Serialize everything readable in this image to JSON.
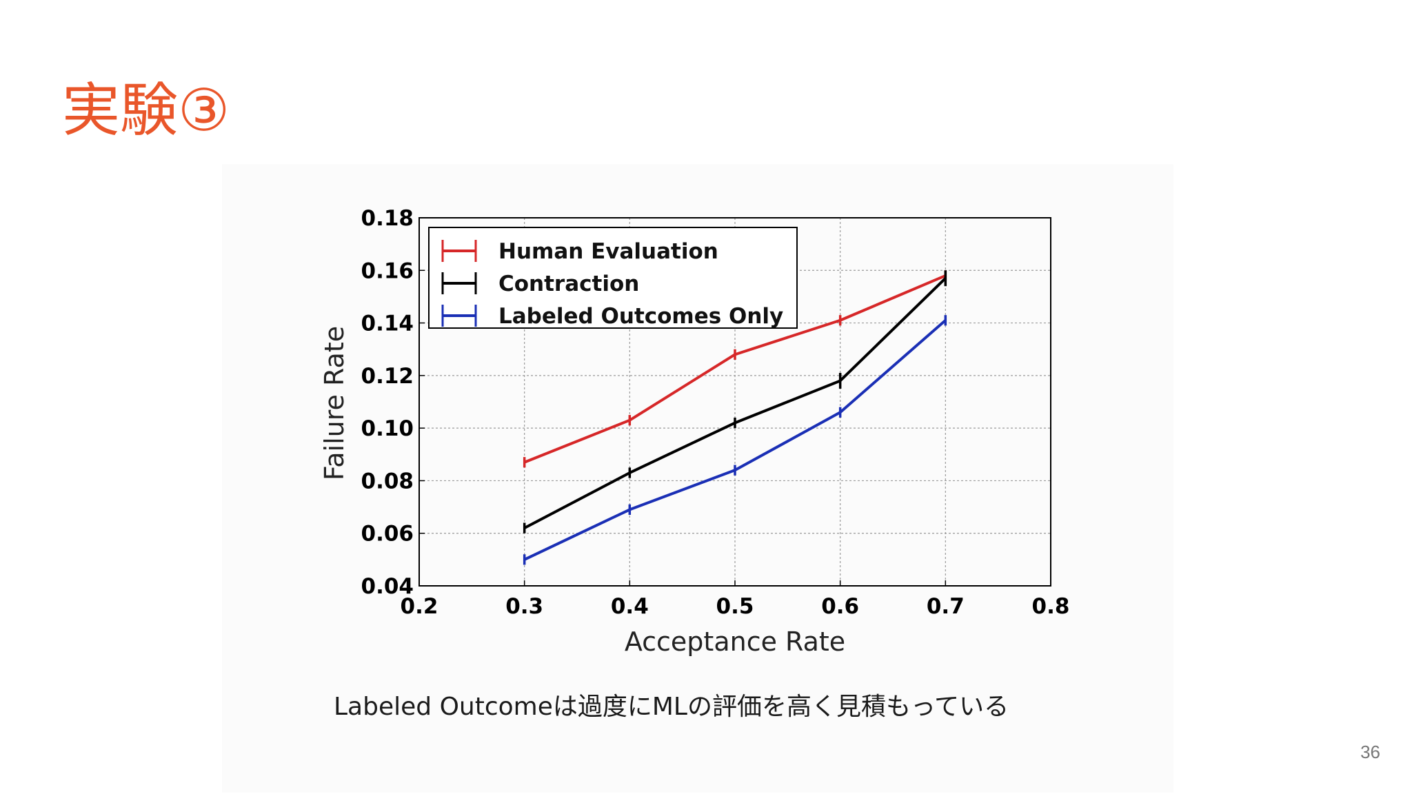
{
  "slide": {
    "title": "実験③",
    "caption": "Labeled Outcomeは過度にMLの評価を高く見積もっている",
    "page_number": "36"
  },
  "chart_data": {
    "type": "line",
    "xlabel": "Acceptance Rate",
    "ylabel": "Failure Rate",
    "xlim": [
      0.2,
      0.8
    ],
    "ylim": [
      0.04,
      0.18
    ],
    "xticks": [
      "0.2",
      "0.3",
      "0.4",
      "0.5",
      "0.6",
      "0.7",
      "0.8"
    ],
    "yticks": [
      "0.04",
      "0.06",
      "0.08",
      "0.10",
      "0.12",
      "0.14",
      "0.16",
      "0.18"
    ],
    "grid": true,
    "legend_position": "top-left",
    "error_bars": true,
    "x": [
      0.3,
      0.4,
      0.5,
      0.6,
      0.7
    ],
    "series": [
      {
        "name": "Human Evaluation",
        "color": "#d62728",
        "values": [
          0.087,
          0.103,
          0.128,
          0.141,
          0.158
        ],
        "errors": [
          0.002,
          0.002,
          0.002,
          0.002,
          0.002
        ]
      },
      {
        "name": "Contraction",
        "color": "#000000",
        "values": [
          0.062,
          0.083,
          0.102,
          0.118,
          0.157
        ],
        "errors": [
          0.002,
          0.002,
          0.002,
          0.003,
          0.003
        ]
      },
      {
        "name": "Labeled Outcomes Only",
        "color": "#1a2fb5",
        "values": [
          0.05,
          0.069,
          0.084,
          0.106,
          0.141
        ],
        "errors": [
          0.002,
          0.002,
          0.002,
          0.002,
          0.002
        ]
      }
    ]
  }
}
